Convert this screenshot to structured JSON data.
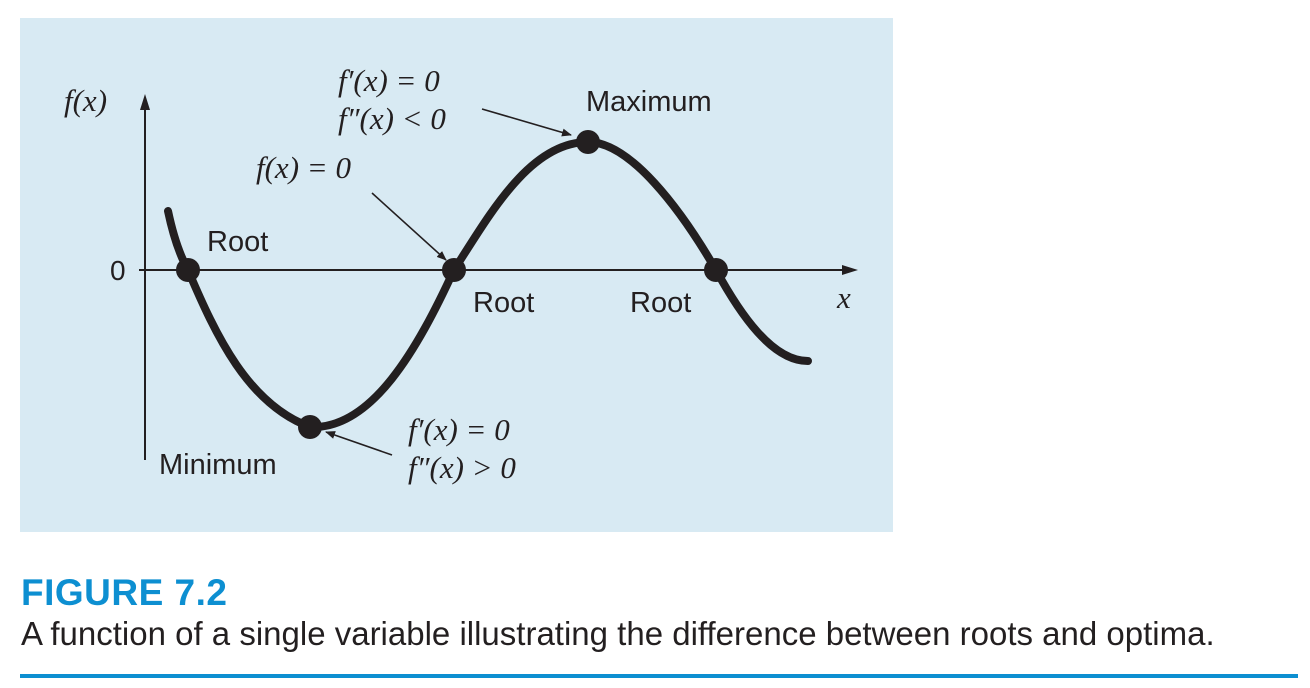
{
  "figure": {
    "number": "FIGURE 7.2",
    "caption": "A function of a single variable illustrating the difference between roots and optima."
  },
  "diagram": {
    "y_axis_label": "f(x)",
    "x_axis_label": "x",
    "zero_label": "0",
    "labels": {
      "root_left": "Root",
      "root_middle": "Root",
      "root_right": "Root",
      "maximum": "Maximum",
      "minimum": "Minimum",
      "max_condition_1": "f′(x) = 0",
      "max_condition_2": "f″(x) < 0",
      "root_condition": "f(x) = 0",
      "min_condition_1": "f′(x) = 0",
      "min_condition_2": "f″(x) > 0"
    }
  },
  "colors": {
    "panel_background": "#d8eaf3",
    "accent_blue": "#0d8fd1",
    "ink": "#231f20"
  }
}
